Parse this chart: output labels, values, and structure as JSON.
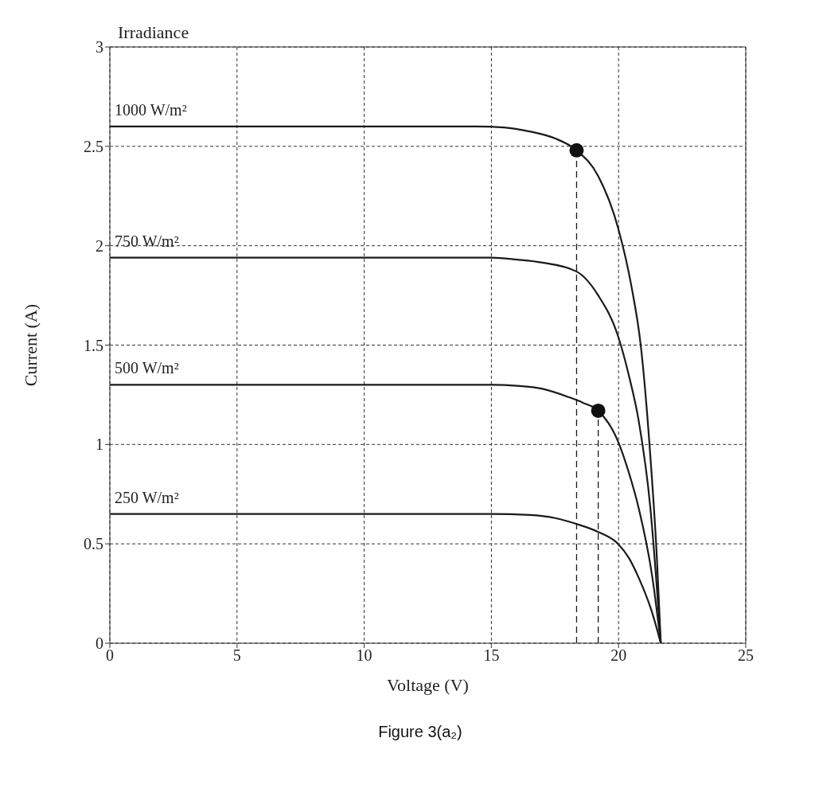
{
  "chart_data": {
    "type": "line",
    "legend_title": "Irradiance",
    "xlabel": "Voltage (V)",
    "ylabel": "Current (A)",
    "xlim": [
      0,
      25
    ],
    "xticks": [
      0,
      5,
      10,
      15,
      20,
      25
    ],
    "ylim": [
      0,
      3
    ],
    "yticks": [
      0,
      0.5,
      1,
      1.5,
      2,
      2.5,
      3
    ],
    "grid": true,
    "marker": "none",
    "line_style": "solid",
    "annotations": [
      "Figure 3(a₂)"
    ],
    "series": [
      {
        "name": "1000 W/m²",
        "color": "#1a1a1a",
        "x": [
          0,
          5,
          10,
          14.4,
          15.5,
          16.5,
          17.5,
          18.35,
          19.2,
          19.98,
          20.5,
          20.88,
          21.25,
          21.51,
          21.66
        ],
        "values": [
          2.6,
          2.6,
          2.6,
          2.6,
          2.595,
          2.575,
          2.54,
          2.48,
          2.35,
          2.09,
          1.8,
          1.49,
          0.94,
          0.42,
          0
        ]
      },
      {
        "name": "750 W/m²",
        "color": "#1a1a1a",
        "x": [
          0,
          5,
          10,
          15,
          16,
          17,
          18.35,
          19.2,
          19.98,
          20.4,
          20.79,
          21.25,
          21.51,
          21.66
        ],
        "values": [
          1.94,
          1.94,
          1.94,
          1.94,
          1.93,
          1.915,
          1.87,
          1.75,
          1.545,
          1.35,
          1.12,
          0.68,
          0.27,
          0
        ]
      },
      {
        "name": "500 W/m²",
        "color": "#1a1a1a",
        "x": [
          0,
          5,
          10,
          15,
          16,
          17,
          18,
          18.6,
          19.2,
          19.98,
          20.4,
          20.79,
          21.33,
          21.66
        ],
        "values": [
          1.3,
          1.3,
          1.3,
          1.3,
          1.295,
          1.28,
          1.24,
          1.21,
          1.17,
          1.015,
          0.86,
          0.68,
          0.33,
          0
        ]
      },
      {
        "name": "250 W/m²",
        "color": "#1a1a1a",
        "x": [
          0,
          5,
          10,
          15,
          16.5,
          17.5,
          18.35,
          19.2,
          19.98,
          20.4,
          20.79,
          21.33,
          21.66
        ],
        "values": [
          0.65,
          0.65,
          0.65,
          0.65,
          0.645,
          0.63,
          0.6,
          0.56,
          0.5,
          0.43,
          0.33,
          0.15,
          0
        ]
      },
      {
        "type": "line",
        "color": "#1a1a1a",
        "line_style": "dashed",
        "x": [
          18.35,
          18.35
        ],
        "values": [
          0,
          2.48
        ]
      },
      {
        "type": "line",
        "color": "#1a1a1a",
        "line_style": "dashed",
        "x": [
          19.2,
          19.2
        ],
        "values": [
          0,
          1.17
        ]
      },
      {
        "type": "scatter",
        "color": "#111111",
        "marker": "circle",
        "x": [
          18.35,
          19.2
        ],
        "values": [
          2.48,
          1.17
        ]
      }
    ]
  }
}
